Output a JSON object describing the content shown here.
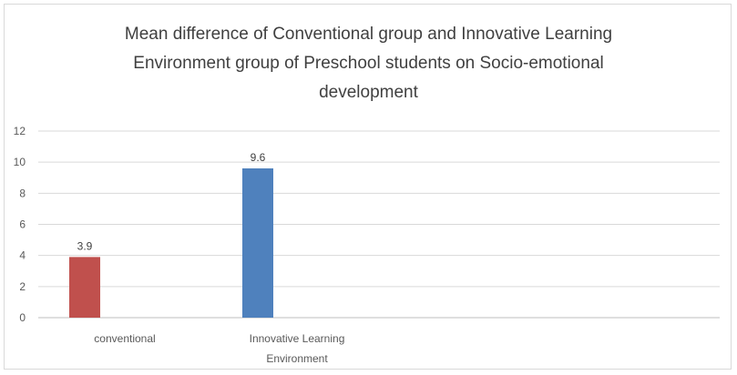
{
  "chart_data": {
    "type": "bar",
    "title_lines": [
      "Mean difference of Conventional group and Innovative Learning",
      "Environment group of Preschool students on Socio-emotional",
      "development"
    ],
    "categories": [
      [
        "conventional"
      ],
      [
        "Innovative Learning",
        "Environment"
      ]
    ],
    "values": [
      3.9,
      9.6
    ],
    "data_labels": [
      "3.9",
      "9.6"
    ],
    "bar_colors": [
      "#c0504d",
      "#4f81bd"
    ],
    "ylim": [
      0,
      12
    ],
    "yticks": [
      0,
      2,
      4,
      6,
      8,
      10,
      12
    ],
    "grid": true,
    "legend": "none"
  }
}
